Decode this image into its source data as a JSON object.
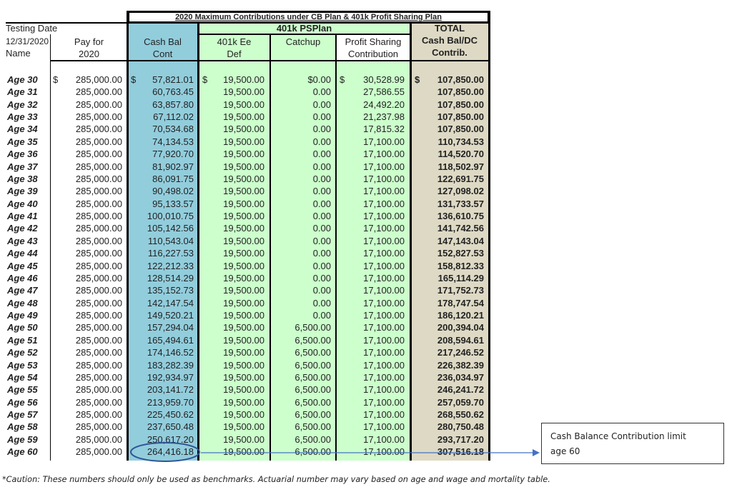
{
  "title": "2020 Maximum Contributions under CB Plan & 401k Profit Sharing Plan",
  "header": {
    "testing_date": "Testing Date",
    "date": "12/31/2020",
    "name": "Name",
    "pay_line1": "Pay for",
    "pay_line2": "2020",
    "cb_line1": "Cash Bal",
    "cb_line2": "Cont",
    "group_401k": "401k PSPlan",
    "ee_line1": "401k Ee",
    "ee_line2": "Def",
    "catchup": "Catchup",
    "ps_line1": "Profit Sharing",
    "ps_line2": "Contribution",
    "total_line1": "TOTAL",
    "total_line2": "Cash Bal/DC",
    "total_line3": "Contrib."
  },
  "currency_symbol": "$",
  "colors": {
    "cash_bal": "#92cddc",
    "plan_401k": "#ccffcc",
    "total": "#ddd9c4",
    "annotation": "#2f5597"
  },
  "rows": [
    {
      "age": "Age 30",
      "pay": "285,000.00",
      "cb": "57,821.01",
      "ee": "19,500.00",
      "catchup": "$0.00",
      "ps": "30,528.99",
      "total": "107,850.00"
    },
    {
      "age": "Age 31",
      "pay": "285,000.00",
      "cb": "60,763.45",
      "ee": "19,500.00",
      "catchup": "0.00",
      "ps": "27,586.55",
      "total": "107,850.00"
    },
    {
      "age": "Age 32",
      "pay": "285,000.00",
      "cb": "63,857.80",
      "ee": "19,500.00",
      "catchup": "0.00",
      "ps": "24,492.20",
      "total": "107,850.00"
    },
    {
      "age": "Age 33",
      "pay": "285,000.00",
      "cb": "67,112.02",
      "ee": "19,500.00",
      "catchup": "0.00",
      "ps": "21,237.98",
      "total": "107,850.00"
    },
    {
      "age": "Age 34",
      "pay": "285,000.00",
      "cb": "70,534.68",
      "ee": "19,500.00",
      "catchup": "0.00",
      "ps": "17,815.32",
      "total": "107,850.00"
    },
    {
      "age": "Age 35",
      "pay": "285,000.00",
      "cb": "74,134.53",
      "ee": "19,500.00",
      "catchup": "0.00",
      "ps": "17,100.00",
      "total": "110,734.53"
    },
    {
      "age": "Age 36",
      "pay": "285,000.00",
      "cb": "77,920.70",
      "ee": "19,500.00",
      "catchup": "0.00",
      "ps": "17,100.00",
      "total": "114,520.70"
    },
    {
      "age": "Age 37",
      "pay": "285,000.00",
      "cb": "81,902.97",
      "ee": "19,500.00",
      "catchup": "0.00",
      "ps": "17,100.00",
      "total": "118,502.97"
    },
    {
      "age": "Age 38",
      "pay": "285,000.00",
      "cb": "86,091.75",
      "ee": "19,500.00",
      "catchup": "0.00",
      "ps": "17,100.00",
      "total": "122,691.75"
    },
    {
      "age": "Age 39",
      "pay": "285,000.00",
      "cb": "90,498.02",
      "ee": "19,500.00",
      "catchup": "0.00",
      "ps": "17,100.00",
      "total": "127,098.02"
    },
    {
      "age": "Age 40",
      "pay": "285,000.00",
      "cb": "95,133.57",
      "ee": "19,500.00",
      "catchup": "0.00",
      "ps": "17,100.00",
      "total": "131,733.57"
    },
    {
      "age": "Age 41",
      "pay": "285,000.00",
      "cb": "100,010.75",
      "ee": "19,500.00",
      "catchup": "0.00",
      "ps": "17,100.00",
      "total": "136,610.75"
    },
    {
      "age": "Age 42",
      "pay": "285,000.00",
      "cb": "105,142.56",
      "ee": "19,500.00",
      "catchup": "0.00",
      "ps": "17,100.00",
      "total": "141,742.56"
    },
    {
      "age": "Age 43",
      "pay": "285,000.00",
      "cb": "110,543.04",
      "ee": "19,500.00",
      "catchup": "0.00",
      "ps": "17,100.00",
      "total": "147,143.04"
    },
    {
      "age": "Age 44",
      "pay": "285,000.00",
      "cb": "116,227.53",
      "ee": "19,500.00",
      "catchup": "0.00",
      "ps": "17,100.00",
      "total": "152,827.53"
    },
    {
      "age": "Age 45",
      "pay": "285,000.00",
      "cb": "122,212.33",
      "ee": "19,500.00",
      "catchup": "0.00",
      "ps": "17,100.00",
      "total": "158,812.33"
    },
    {
      "age": "Age 46",
      "pay": "285,000.00",
      "cb": "128,514.29",
      "ee": "19,500.00",
      "catchup": "0.00",
      "ps": "17,100.00",
      "total": "165,114.29"
    },
    {
      "age": "Age 47",
      "pay": "285,000.00",
      "cb": "135,152.73",
      "ee": "19,500.00",
      "catchup": "0.00",
      "ps": "17,100.00",
      "total": "171,752.73"
    },
    {
      "age": "Age 48",
      "pay": "285,000.00",
      "cb": "142,147.54",
      "ee": "19,500.00",
      "catchup": "0.00",
      "ps": "17,100.00",
      "total": "178,747.54"
    },
    {
      "age": "Age 49",
      "pay": "285,000.00",
      "cb": "149,520.21",
      "ee": "19,500.00",
      "catchup": "0.00",
      "ps": "17,100.00",
      "total": "186,120.21"
    },
    {
      "age": "Age 50",
      "pay": "285,000.00",
      "cb": "157,294.04",
      "ee": "19,500.00",
      "catchup": "6,500.00",
      "ps": "17,100.00",
      "total": "200,394.04"
    },
    {
      "age": "Age 51",
      "pay": "285,000.00",
      "cb": "165,494.61",
      "ee": "19,500.00",
      "catchup": "6,500.00",
      "ps": "17,100.00",
      "total": "208,594.61"
    },
    {
      "age": "Age 52",
      "pay": "285,000.00",
      "cb": "174,146.52",
      "ee": "19,500.00",
      "catchup": "6,500.00",
      "ps": "17,100.00",
      "total": "217,246.52"
    },
    {
      "age": "Age 53",
      "pay": "285,000.00",
      "cb": "183,282.39",
      "ee": "19,500.00",
      "catchup": "6,500.00",
      "ps": "17,100.00",
      "total": "226,382.39"
    },
    {
      "age": "Age 54",
      "pay": "285,000.00",
      "cb": "192,934.97",
      "ee": "19,500.00",
      "catchup": "6,500.00",
      "ps": "17,100.00",
      "total": "236,034.97"
    },
    {
      "age": "Age 55",
      "pay": "285,000.00",
      "cb": "203,141.72",
      "ee": "19,500.00",
      "catchup": "6,500.00",
      "ps": "17,100.00",
      "total": "246,241.72"
    },
    {
      "age": "Age 56",
      "pay": "285,000.00",
      "cb": "213,959.70",
      "ee": "19,500.00",
      "catchup": "6,500.00",
      "ps": "17,100.00",
      "total": "257,059.70"
    },
    {
      "age": "Age 57",
      "pay": "285,000.00",
      "cb": "225,450.62",
      "ee": "19,500.00",
      "catchup": "6,500.00",
      "ps": "17,100.00",
      "total": "268,550.62"
    },
    {
      "age": "Age 58",
      "pay": "285,000.00",
      "cb": "237,650.48",
      "ee": "19,500.00",
      "catchup": "6,500.00",
      "ps": "17,100.00",
      "total": "280,750.48"
    },
    {
      "age": "Age 59",
      "pay": "285,000.00",
      "cb": "250,617.20",
      "ee": "19,500.00",
      "catchup": "6,500.00",
      "ps": "17,100.00",
      "total": "293,717.20"
    },
    {
      "age": "Age 60",
      "pay": "285,000.00",
      "cb": "264,416.18",
      "ee": "19,500.00",
      "catchup": "6,500.00",
      "ps": "17,100.00",
      "total": "307,516.18"
    }
  ],
  "callout": {
    "line1": "Cash Balance Contribution limit",
    "line2": "age 60"
  },
  "footnote": "*Caution: These numbers should only be used as benchmarks. Actuarial number may vary based on age and wage and mortality table."
}
